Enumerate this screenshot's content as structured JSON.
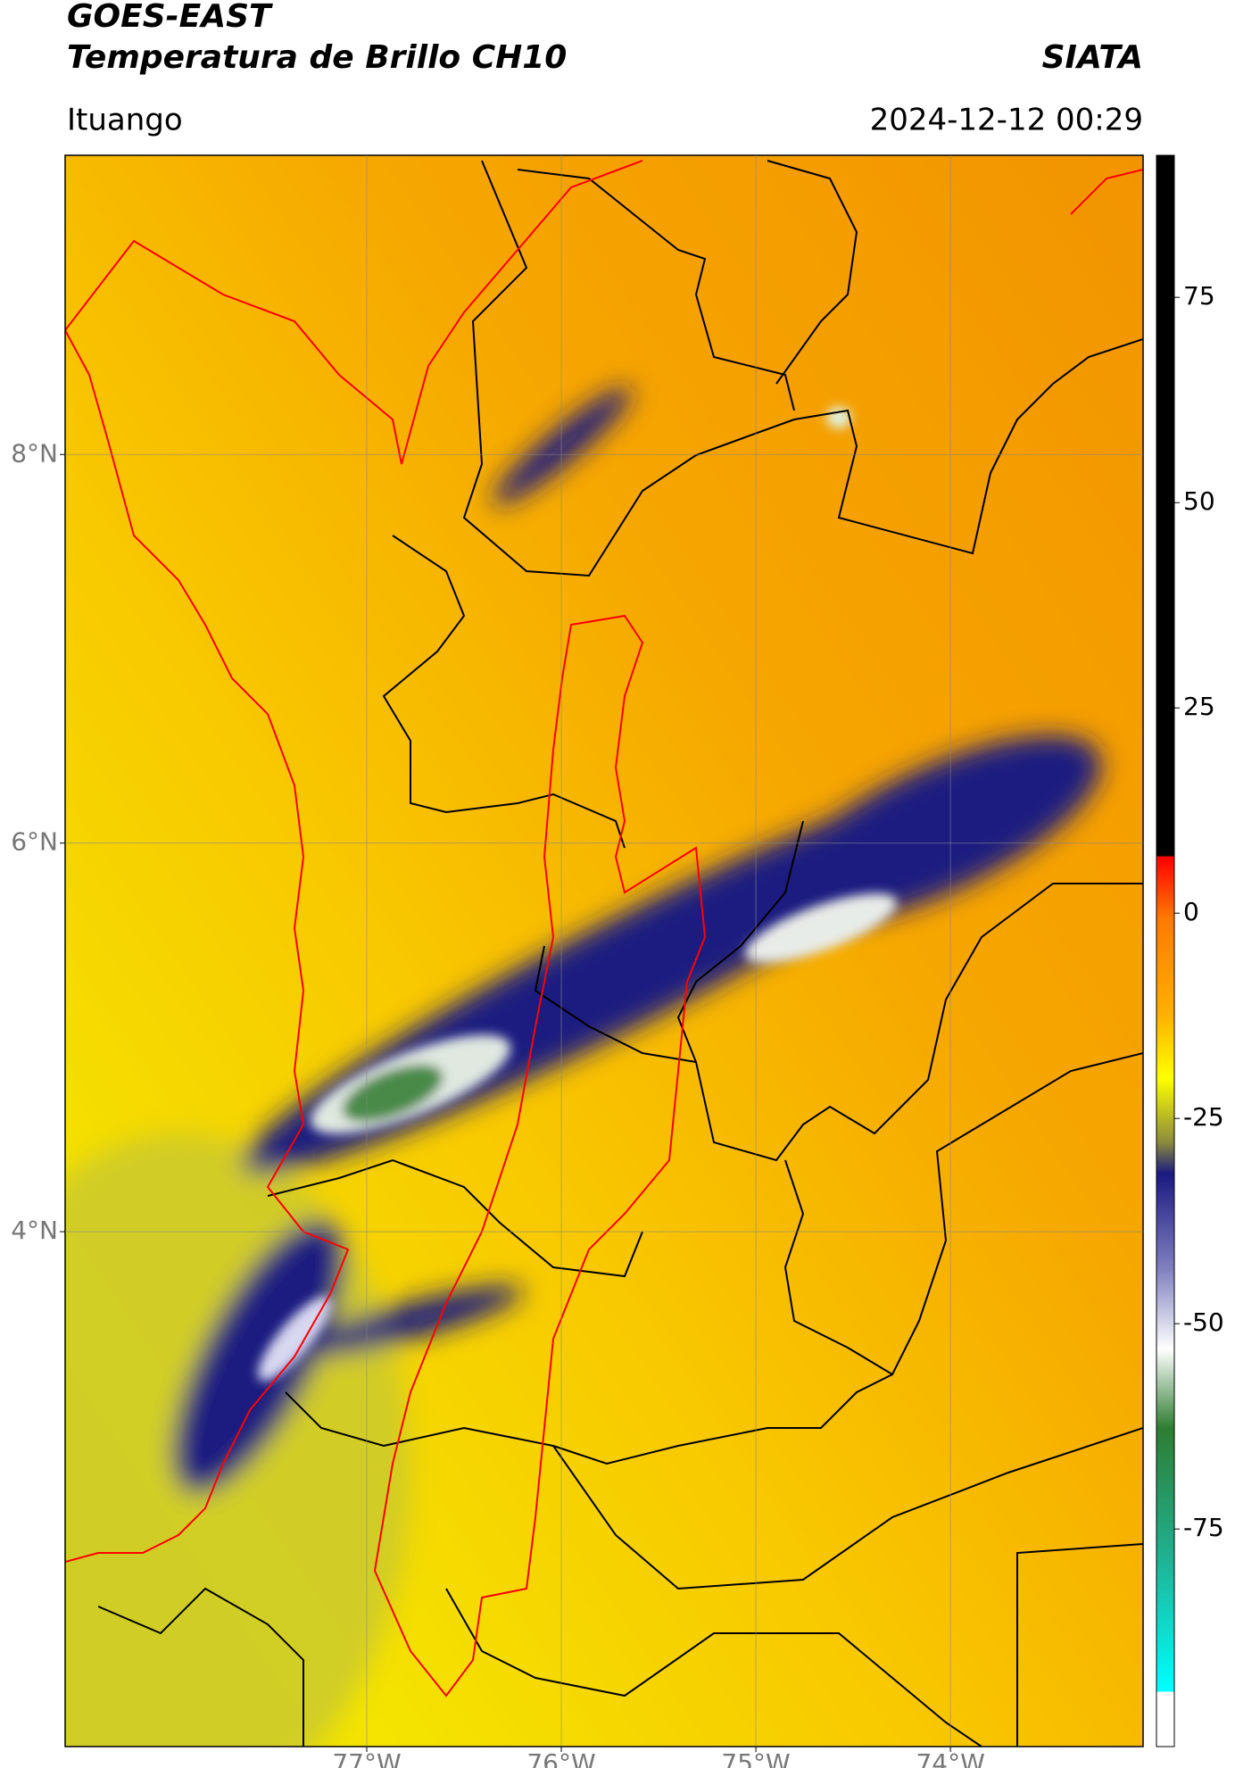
{
  "header": {
    "satellite": "GOES-EAST",
    "product": "Temperatura de Brillo CH10",
    "agency": "SIATA",
    "region": "Ituango",
    "timestamp": "2024-12-12 00:29"
  },
  "map": {
    "xlim": [
      -78.55,
      -73.01
    ],
    "ylim": [
      1.35,
      9.54
    ],
    "xticks": [
      {
        "value": -77,
        "label": "77°W"
      },
      {
        "value": -76,
        "label": "76°W"
      },
      {
        "value": -75,
        "label": "75°W"
      },
      {
        "value": -74,
        "label": "74°W"
      }
    ],
    "yticks": [
      {
        "value": 8,
        "label": "8°N"
      },
      {
        "value": 6,
        "label": "6°N"
      },
      {
        "value": 4,
        "label": "4°N"
      }
    ],
    "grid": true
  },
  "colorbar": {
    "lim": [
      -101.5,
      92.3
    ],
    "ticks": [
      75,
      50,
      25,
      0,
      -25,
      -50,
      -75
    ]
  }
}
